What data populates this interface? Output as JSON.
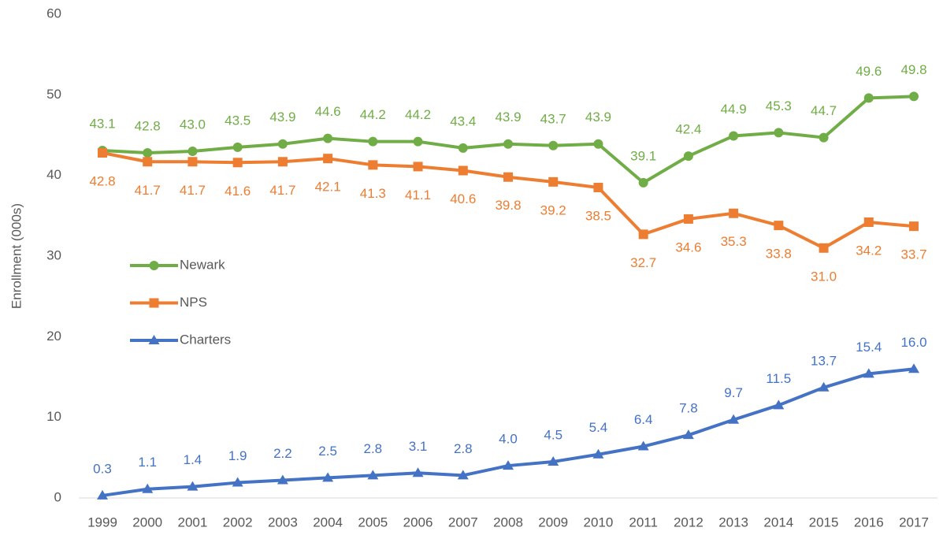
{
  "chart_data": {
    "type": "line",
    "y_label": "Enrollment (000s)",
    "categories": [
      "1999",
      "2000",
      "2001",
      "2002",
      "2003",
      "2004",
      "2005",
      "2006",
      "2007",
      "2008",
      "2009",
      "2010",
      "2011",
      "2012",
      "2013",
      "2014",
      "2015",
      "2016",
      "2017"
    ],
    "ylim": [
      0,
      60
    ],
    "yticks": [
      0,
      10,
      20,
      30,
      40,
      50,
      60
    ],
    "grid": false,
    "legend": "left",
    "series": [
      {
        "name": "Newark",
        "color": "#70ad47",
        "marker": "circle",
        "label_position": "above",
        "values": [
          43.1,
          42.8,
          43.0,
          43.5,
          43.9,
          44.6,
          44.2,
          44.2,
          43.4,
          43.9,
          43.7,
          43.9,
          39.1,
          42.4,
          44.9,
          45.3,
          44.7,
          49.6,
          49.8
        ],
        "value_labels": [
          "43.1",
          "42.8",
          "43.0",
          "43.5",
          "43.9",
          "44.6",
          "44.2",
          "44.2",
          "43.4",
          "43.9",
          "43.7",
          "43.9",
          "39.1",
          "42.4",
          "44.9",
          "45.3",
          "44.7",
          "49.6",
          "49.8"
        ]
      },
      {
        "name": "NPS",
        "color": "#ed7d31",
        "marker": "square",
        "label_position": "below",
        "values": [
          42.8,
          41.7,
          41.7,
          41.6,
          41.7,
          42.1,
          41.3,
          41.1,
          40.6,
          39.8,
          39.2,
          38.5,
          32.7,
          34.6,
          35.3,
          33.8,
          31.0,
          34.2,
          33.7
        ],
        "value_labels": [
          "42.8",
          "41.7",
          "41.7",
          "41.6",
          "41.7",
          "42.1",
          "41.3",
          "41.1",
          "40.6",
          "39.8",
          "39.2",
          "38.5",
          "32.7",
          "34.6",
          "35.3",
          "33.8",
          "31.0",
          "34.2",
          "33.7"
        ]
      },
      {
        "name": "Charters",
        "color": "#4472c4",
        "marker": "triangle",
        "label_position": "above",
        "values": [
          0.3,
          1.1,
          1.4,
          1.9,
          2.2,
          2.5,
          2.8,
          3.1,
          2.8,
          4.0,
          4.5,
          5.4,
          6.4,
          7.8,
          9.7,
          11.5,
          13.7,
          15.4,
          16.0
        ],
        "value_labels": [
          "0.3",
          "1.1",
          "1.4",
          "1.9",
          "2.2",
          "2.5",
          "2.8",
          "3.1",
          "2.8",
          "4.0",
          "4.5",
          "5.4",
          "6.4",
          "7.8",
          "9.7",
          "11.5",
          "13.7",
          "15.4",
          "16.0"
        ]
      }
    ]
  }
}
